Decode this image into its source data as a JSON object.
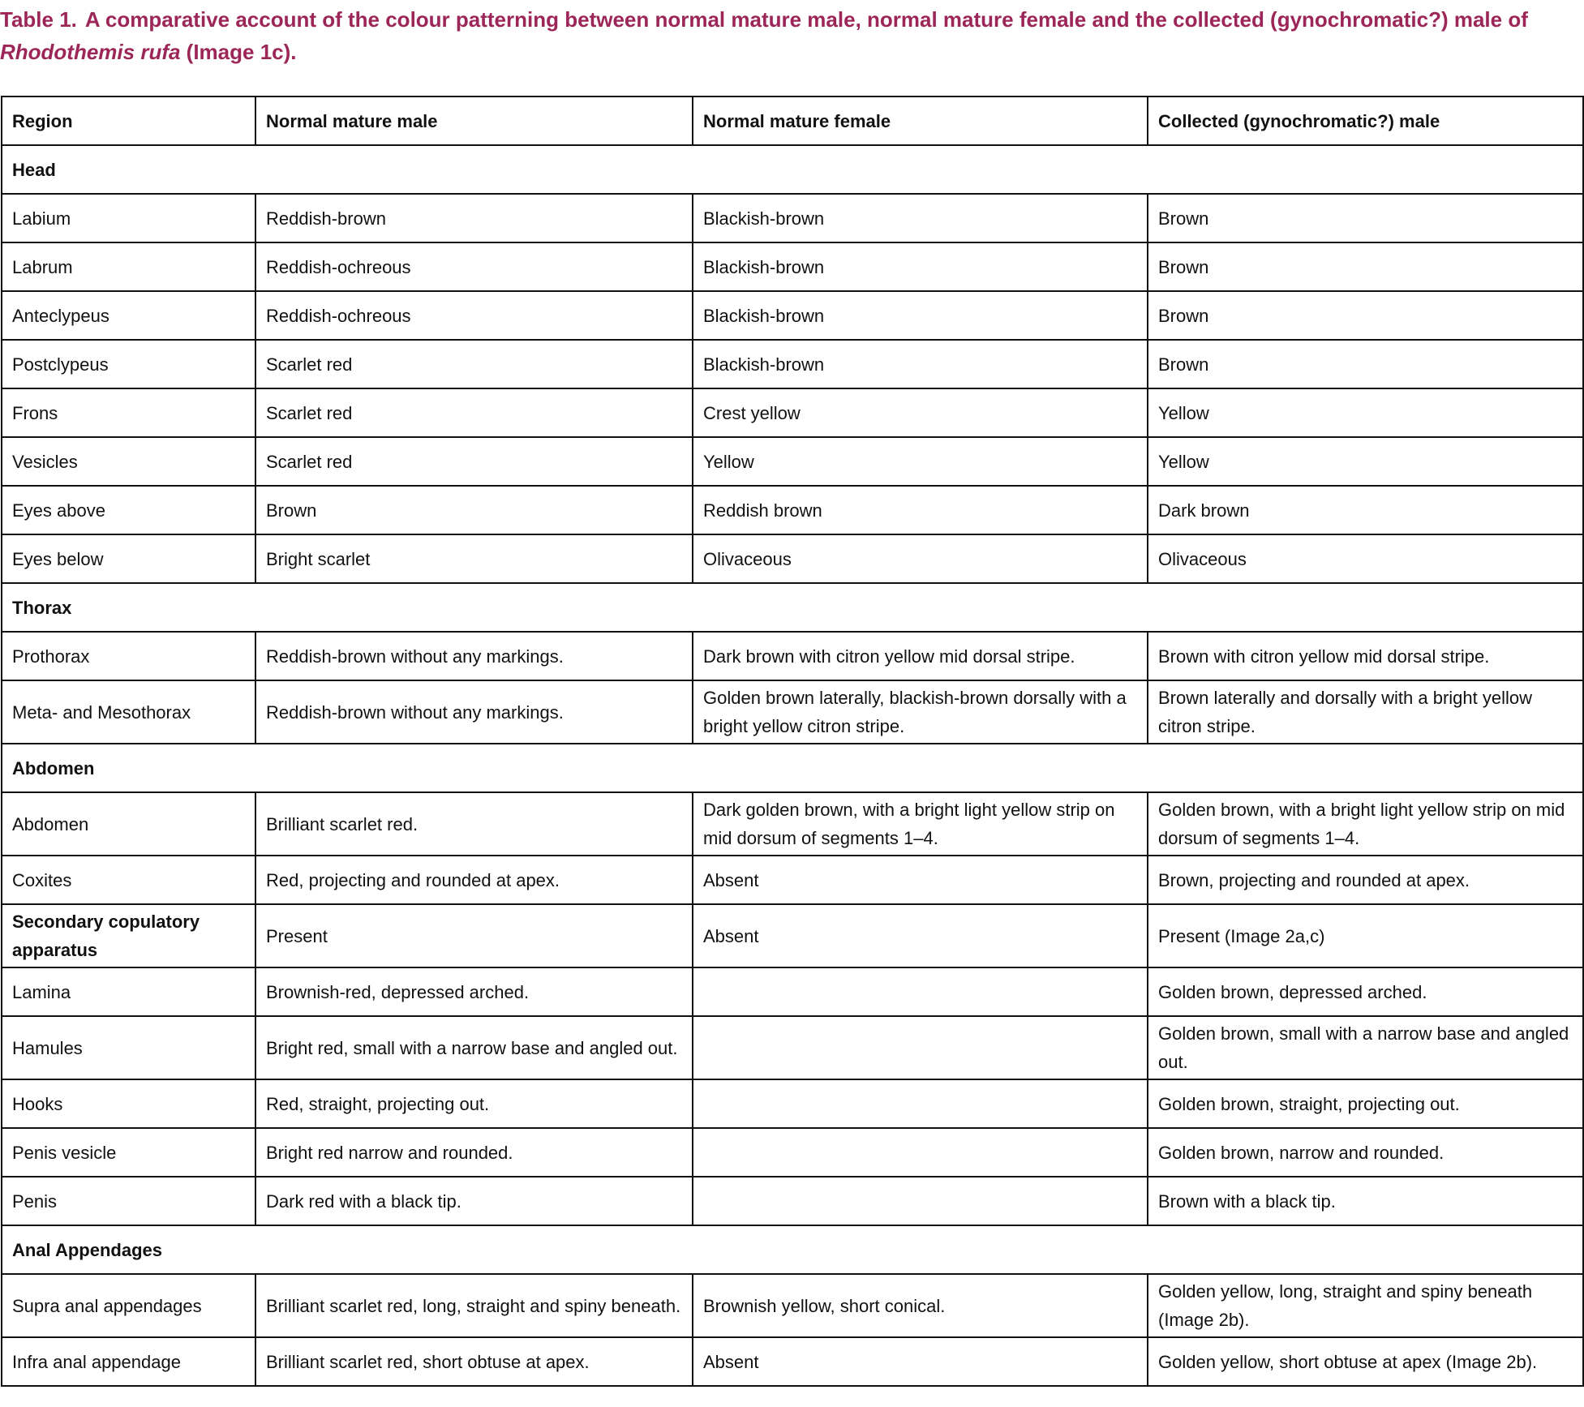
{
  "caption": {
    "label": "Table 1.",
    "text": "A comparative account of the colour patterning between normal mature male, normal mature female and the collected (gynochromatic?) male of ",
    "species": "Rhodothemis rufa",
    "after": " (Image 1c)."
  },
  "table": {
    "header": [
      "Region",
      "Normal mature male",
      "Normal mature female",
      "Collected (gynochromatic?) male"
    ],
    "rows": [
      {
        "section": "Head"
      },
      {
        "cells": [
          "Labium",
          "Reddish-brown",
          "Blackish-brown",
          "Brown"
        ]
      },
      {
        "cells": [
          "Labrum",
          "Reddish-ochreous",
          "Blackish-brown",
          "Brown"
        ]
      },
      {
        "cells": [
          "Anteclypeus",
          "Reddish-ochreous",
          "Blackish-brown",
          "Brown"
        ]
      },
      {
        "cells": [
          "Postclypeus",
          "Scarlet red",
          "Blackish-brown",
          "Brown"
        ]
      },
      {
        "cells": [
          "Frons",
          "Scarlet red",
          "Crest yellow",
          "Yellow"
        ]
      },
      {
        "cells": [
          "Vesicles",
          "Scarlet red",
          "Yellow",
          "Yellow"
        ]
      },
      {
        "cells": [
          "Eyes above",
          "Brown",
          "Reddish brown",
          "Dark brown"
        ]
      },
      {
        "cells": [
          "Eyes  below",
          "Bright scarlet",
          "Olivaceous",
          "Olivaceous"
        ]
      },
      {
        "section": "Thorax"
      },
      {
        "cells": [
          "Prothorax",
          "Reddish-brown without any markings.",
          "Dark brown with citron yellow mid dorsal stripe.",
          "Brown with citron yellow mid dorsal stripe."
        ]
      },
      {
        "cells": [
          "Meta- and Mesothorax",
          "Reddish-brown without any markings.",
          "Golden brown laterally, blackish-brown dorsally with a bright yellow citron stripe.",
          "Brown laterally and dorsally with a bright yellow citron stripe."
        ]
      },
      {
        "section": "Abdomen"
      },
      {
        "cells": [
          "Abdomen",
          "Brilliant scarlet red.",
          "Dark golden brown, with a bright light yellow strip on mid dorsum of segments 1–4.",
          "Golden brown, with a bright light yellow strip on mid dorsum of segments 1–4."
        ]
      },
      {
        "cells": [
          "Coxites",
          "Red, projecting and rounded at apex.",
          "Absent",
          "Brown, projecting and rounded at apex."
        ]
      },
      {
        "cells": [
          "Secondary copulatory apparatus",
          "Present",
          "Absent",
          "Present (Image 2a,c)"
        ],
        "bold_label": true
      },
      {
        "cells": [
          "Lamina",
          "Brownish-red, depressed arched.",
          null,
          "Golden brown, depressed arched."
        ]
      },
      {
        "cells": [
          "Hamules",
          "Bright red, small with a narrow base and angled out.",
          null,
          "Golden brown, small with a narrow base and angled out."
        ]
      },
      {
        "cells": [
          "Hooks",
          "Red, straight, projecting out.",
          null,
          "Golden brown, straight, projecting out."
        ]
      },
      {
        "cells": [
          "Penis vesicle",
          "Bright red narrow and rounded.",
          null,
          "Golden brown, narrow and rounded."
        ]
      },
      {
        "cells": [
          "Penis",
          "Dark red with a black tip.",
          null,
          "Brown with a black tip."
        ]
      },
      {
        "section": "Anal Appendages"
      },
      {
        "cells": [
          "Supra anal appendages",
          "Brilliant scarlet red, long, straight and spiny beneath.",
          "Brownish yellow, short conical.",
          "Golden yellow, long, straight and spiny beneath (Image 2b)."
        ]
      },
      {
        "cells": [
          "Infra anal appendage",
          "Brilliant scarlet red, short obtuse at apex.",
          "Absent",
          "Golden yellow, short obtuse at apex (Image 2b)."
        ]
      }
    ]
  }
}
